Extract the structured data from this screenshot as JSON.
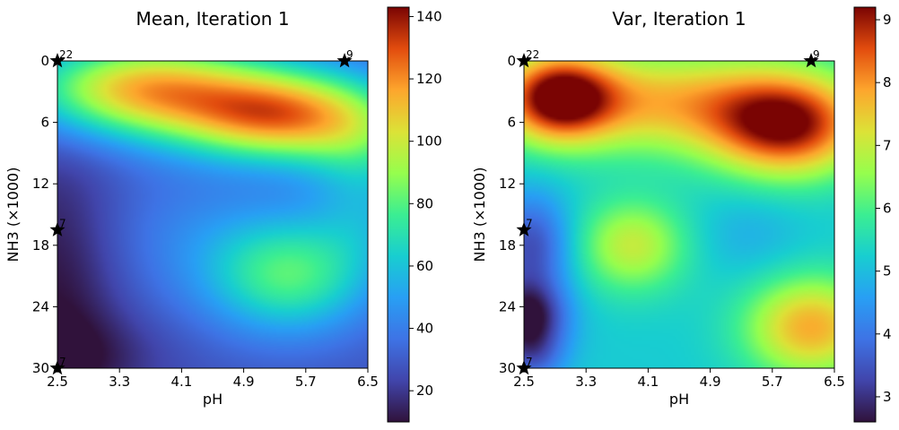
{
  "chart_data": [
    {
      "type": "heatmap",
      "title": "Mean, Iteration 1",
      "xlabel": "pH",
      "ylabel": "NH3 (×1000)",
      "xlim": [
        2.5,
        6.5
      ],
      "ylim": [
        0,
        30
      ],
      "y_inverted": true,
      "x_ticks": [
        "2.5",
        "3.3",
        "4.1",
        "4.9",
        "5.7",
        "6.5"
      ],
      "y_ticks": [
        "0",
        "6",
        "12",
        "18",
        "24",
        "30"
      ],
      "colormap": "turbo",
      "colorbar": {
        "min": 10,
        "max": 143,
        "ticks": [
          "20",
          "40",
          "60",
          "80",
          "100",
          "120",
          "140"
        ]
      },
      "field_bumps": [
        {
          "x": 3.5,
          "y": 2.5,
          "v": 60,
          "sx": 1.0,
          "sy": 3.2
        },
        {
          "x": 5.4,
          "y": 5.5,
          "v": 72,
          "sx": 0.9,
          "sy": 3.0
        },
        {
          "x": 4.4,
          "y": 3.5,
          "v": 30,
          "sx": 1.4,
          "sy": 3.5
        },
        {
          "x": 6.5,
          "y": 8.0,
          "v": 25,
          "sx": 0.6,
          "sy": 3.5
        },
        {
          "x": 5.5,
          "y": 21.0,
          "v": 48,
          "sx": 0.75,
          "sy": 4.0
        },
        {
          "x": 4.3,
          "y": 17.0,
          "v": 12,
          "sx": 1.0,
          "sy": 5.0
        },
        {
          "x": 6.5,
          "y": 15.0,
          "v": 18,
          "sx": 0.5,
          "sy": 4.0
        },
        {
          "x": 2.5,
          "y": 22.0,
          "v": -18,
          "sx": 0.6,
          "sy": 10.0
        },
        {
          "x": 2.8,
          "y": 29.0,
          "v": -10,
          "sx": 0.8,
          "sy": 3.0
        }
      ],
      "field_base": 28,
      "points": [
        {
          "x": 2.5,
          "y": 0,
          "label": "22"
        },
        {
          "x": 6.2,
          "y": 0,
          "label": "9"
        },
        {
          "x": 2.5,
          "y": 16.5,
          "label": "7"
        },
        {
          "x": 2.5,
          "y": 30,
          "label": "7"
        }
      ]
    },
    {
      "type": "heatmap",
      "title": "Var, Iteration 1",
      "xlabel": "pH",
      "ylabel": "NH3 (×1000)",
      "xlim": [
        2.5,
        6.5
      ],
      "ylim": [
        0,
        30
      ],
      "y_inverted": true,
      "x_ticks": [
        "2.5",
        "3.3",
        "4.1",
        "4.9",
        "5.7",
        "6.5"
      ],
      "y_ticks": [
        "0",
        "6",
        "12",
        "18",
        "24",
        "30"
      ],
      "colormap": "turbo",
      "colorbar": {
        "min": 2.6,
        "max": 9.2,
        "ticks": [
          "3",
          "4",
          "5",
          "6",
          "7",
          "8",
          "9"
        ]
      },
      "field_bumps": [
        {
          "x": 2.95,
          "y": 3.5,
          "v": 3.4,
          "sx": 0.5,
          "sy": 3.0
        },
        {
          "x": 5.9,
          "y": 6.5,
          "v": 3.4,
          "sx": 0.7,
          "sy": 3.5
        },
        {
          "x": 4.3,
          "y": 4.0,
          "v": 2.4,
          "sx": 1.4,
          "sy": 3.5
        },
        {
          "x": 3.9,
          "y": 18.0,
          "v": 1.8,
          "sx": 0.5,
          "sy": 3.2
        },
        {
          "x": 6.2,
          "y": 26.0,
          "v": 2.6,
          "sx": 0.6,
          "sy": 3.5
        },
        {
          "x": 5.4,
          "y": 17.0,
          "v": -0.4,
          "sx": 0.5,
          "sy": 3.0
        },
        {
          "x": 2.6,
          "y": 18.0,
          "v": -1.8,
          "sx": 0.35,
          "sy": 3.5
        },
        {
          "x": 2.55,
          "y": 25.0,
          "v": -2.6,
          "sx": 0.35,
          "sy": 2.5
        },
        {
          "x": 2.6,
          "y": 29.0,
          "v": -1.2,
          "sx": 0.3,
          "sy": 2.0
        }
      ],
      "field_base": 5.2,
      "points": [
        {
          "x": 2.5,
          "y": 0,
          "label": "22"
        },
        {
          "x": 6.2,
          "y": 0,
          "label": "9"
        },
        {
          "x": 2.5,
          "y": 16.5,
          "label": "7"
        },
        {
          "x": 2.5,
          "y": 30,
          "label": "7"
        }
      ]
    }
  ]
}
